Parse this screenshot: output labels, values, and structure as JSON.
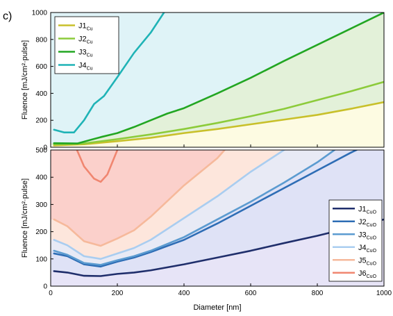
{
  "panel_label": "c)",
  "chart_data": [
    {
      "type": "area",
      "xlabel": "",
      "ylabel": "Fluence [mJ/cm²·pulse]",
      "xlim": [
        0,
        1000
      ],
      "ylim": [
        0,
        1000
      ],
      "xticks": [
        0,
        200,
        400,
        600,
        800,
        1000
      ],
      "yticks": [
        0,
        200,
        400,
        600,
        800,
        1000
      ],
      "legend_position": "top-left",
      "series": [
        {
          "name": "J1",
          "sub": "Cu",
          "color": "#c8c02a",
          "fill": "#fdfbe2",
          "x": [
            10,
            100,
            200,
            300,
            400,
            500,
            600,
            700,
            800,
            900,
            1000
          ],
          "y": [
            14,
            22,
            45,
            70,
            105,
            135,
            170,
            205,
            240,
            285,
            335
          ]
        },
        {
          "name": "J2",
          "sub": "Cu",
          "color": "#8ccb3a",
          "fill": "#e3f1d9",
          "x": [
            10,
            100,
            200,
            300,
            400,
            500,
            600,
            700,
            800,
            900,
            1000
          ],
          "y": [
            22,
            28,
            60,
            95,
            135,
            180,
            230,
            285,
            350,
            415,
            485
          ]
        },
        {
          "name": "J3",
          "sub": "Cu",
          "color": "#22a622",
          "fill": "#e3f1d9",
          "x": [
            10,
            80,
            150,
            200,
            250,
            300,
            350,
            400,
            500,
            600,
            700,
            800,
            900,
            1000
          ],
          "y": [
            30,
            28,
            75,
            105,
            150,
            200,
            250,
            290,
            400,
            515,
            640,
            760,
            880,
            1000
          ]
        },
        {
          "name": "J4",
          "sub": "Cu",
          "color": "#1fb3b6",
          "fill": "#dff3f7",
          "x": [
            10,
            40,
            70,
            100,
            130,
            160,
            200,
            250,
            300,
            340
          ],
          "y": [
            130,
            110,
            110,
            200,
            320,
            380,
            520,
            700,
            850,
            1000
          ]
        }
      ]
    },
    {
      "type": "area",
      "xlabel": "Diameter [nm]",
      "ylabel": "Fluence [mJ/cm²·pulse]",
      "xlim": [
        0,
        1000
      ],
      "ylim": [
        0,
        500
      ],
      "xticks": [
        0,
        200,
        400,
        600,
        800,
        1000
      ],
      "yticks": [
        0,
        100,
        200,
        300,
        400,
        500
      ],
      "legend_position": "right",
      "series": [
        {
          "name": "J1",
          "sub": "CuO",
          "color": "#1f2e6b",
          "fill": "#e7e4f7",
          "x": [
            10,
            50,
            100,
            150,
            200,
            250,
            300,
            400,
            500,
            600,
            700,
            800,
            900,
            1000
          ],
          "y": [
            55,
            50,
            38,
            37,
            45,
            50,
            58,
            80,
            105,
            130,
            158,
            185,
            215,
            245
          ]
        },
        {
          "name": "J2",
          "sub": "CuO",
          "color": "#2e6db5",
          "fill": "#dfe2f6",
          "x": [
            10,
            50,
            100,
            150,
            200,
            250,
            300,
            400,
            500,
            600,
            700,
            800,
            900,
            960
          ],
          "y": [
            120,
            110,
            80,
            72,
            90,
            105,
            125,
            170,
            230,
            295,
            360,
            425,
            490,
            525
          ]
        },
        {
          "name": "J3",
          "sub": "CuO",
          "color": "#5b9bd0",
          "fill": "#dfe2f6",
          "x": [
            10,
            50,
            100,
            150,
            200,
            250,
            300,
            400,
            500,
            600,
            700,
            800,
            880
          ],
          "y": [
            130,
            115,
            85,
            78,
            95,
            110,
            130,
            180,
            245,
            310,
            380,
            455,
            525
          ]
        },
        {
          "name": "J4",
          "sub": "CuO",
          "color": "#a9cdf0",
          "fill": "#e8eaf5",
          "x": [
            10,
            50,
            100,
            150,
            200,
            250,
            300,
            400,
            500,
            600,
            700,
            740
          ],
          "y": [
            170,
            150,
            110,
            100,
            120,
            140,
            170,
            250,
            330,
            420,
            500,
            525
          ]
        },
        {
          "name": "J5",
          "sub": "CuO",
          "color": "#f6b99b",
          "fill": "#fde6dc",
          "x": [
            10,
            50,
            100,
            150,
            200,
            250,
            300,
            400,
            500,
            540
          ],
          "y": [
            245,
            220,
            165,
            148,
            175,
            205,
            255,
            370,
            470,
            525
          ]
        },
        {
          "name": "J6",
          "sub": "CuO",
          "color": "#f08670",
          "fill": "#fbd0cb",
          "x": [
            70,
            100,
            130,
            150,
            170,
            200
          ],
          "y": [
            525,
            440,
            395,
            383,
            410,
            500
          ]
        }
      ]
    }
  ]
}
